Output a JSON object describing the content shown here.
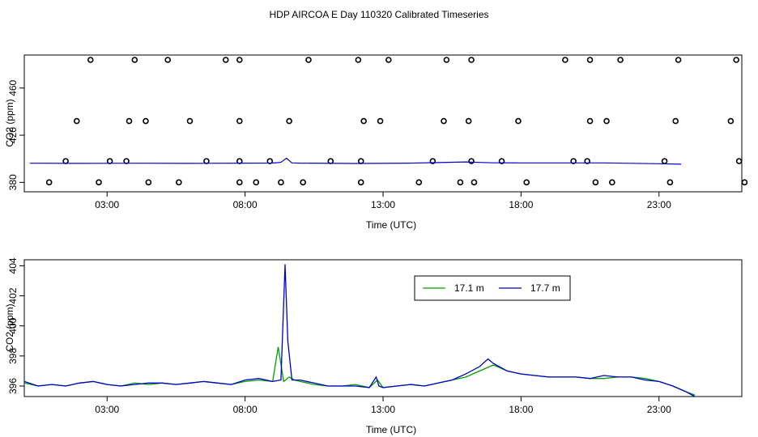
{
  "title": "HDP AIRCOA E  Day 110320  Calibrated Timeseries",
  "colors": {
    "series_17_1": "#00a000",
    "series_17_7": "#0000cc",
    "axes": "#000000",
    "markers": "#000000"
  },
  "chart_data": [
    {
      "type": "line",
      "panel": "top",
      "title": "",
      "xlabel": "Time (UTC)",
      "ylabel": "CO2 (ppm)",
      "xlim": [
        "00:00",
        "26:00"
      ],
      "ylim": [
        372,
        488
      ],
      "x_ticks": [
        "03:00",
        "08:00",
        "13:00",
        "18:00",
        "23:00"
      ],
      "y_ticks": [
        380,
        420,
        460
      ],
      "grid": false,
      "legend": "none",
      "series": [
        {
          "values_hours": [
            0.2,
            2.0,
            4.0,
            6.0,
            8.0,
            9.0,
            9.3,
            9.5,
            9.7,
            10.0,
            12.0,
            14.0,
            15.0,
            16.0,
            16.5,
            17.0,
            18.0,
            20.0,
            21.0,
            23.0,
            23.8
          ],
          "values_ppm": [
            396.2,
            396.1,
            396.2,
            396.1,
            396.3,
            396.4,
            397.0,
            400.5,
            396.5,
            396.3,
            396.0,
            396.3,
            396.8,
            397.3,
            396.9,
            396.6,
            396.5,
            396.5,
            396.5,
            395.8,
            395.4
          ]
        }
      ],
      "calibration_points": {
        "hours": [
          0.9,
          2.7,
          4.5,
          5.6,
          7.8,
          8.4,
          9.3,
          10.1,
          12.2,
          14.3,
          15.8,
          16.3,
          18.2,
          20.7,
          21.3,
          23.4,
          26.1,
          1.5,
          3.1,
          3.7,
          6.6,
          7.8,
          8.9,
          11.1,
          12.2,
          14.8,
          16.2,
          17.3,
          19.9,
          20.4,
          23.2,
          25.9,
          1.9,
          3.8,
          4.4,
          6.0,
          7.8,
          9.6,
          12.3,
          12.9,
          15.2,
          16.1,
          17.9,
          20.5,
          21.1,
          23.6,
          25.6,
          2.4,
          4.0,
          5.2,
          7.3,
          7.8,
          10.3,
          12.1,
          13.2,
          15.3,
          16.2,
          19.6,
          20.5,
          21.6,
          23.7,
          25.8
        ],
        "ppm": [
          380,
          380,
          380,
          380,
          380,
          380,
          380,
          380,
          380,
          380,
          380,
          380,
          380,
          380,
          380,
          380,
          380,
          398,
          398,
          398,
          398,
          398,
          398,
          398,
          398,
          398,
          398,
          398,
          398,
          398,
          398,
          398,
          432,
          432,
          432,
          432,
          432,
          432,
          432,
          432,
          432,
          432,
          432,
          432,
          432,
          432,
          432,
          490,
          490,
          490,
          490,
          490,
          490,
          490,
          490,
          490,
          490,
          490,
          490,
          490,
          490,
          490
        ]
      }
    },
    {
      "type": "line",
      "panel": "bottom",
      "title": "",
      "xlabel": "Time (UTC)",
      "ylabel": "CO2 (ppm)",
      "xlim": [
        "00:00",
        "26:00"
      ],
      "ylim": [
        395.3,
        404.4
      ],
      "x_ticks": [
        "03:00",
        "08:00",
        "13:00",
        "18:00",
        "23:00"
      ],
      "y_ticks": [
        396,
        398,
        400,
        402,
        404
      ],
      "grid": false,
      "legend": "top-center",
      "series": [
        {
          "name": "17.1 m",
          "hours": [
            0.0,
            0.5,
            1.0,
            1.5,
            2.0,
            2.5,
            3.0,
            3.5,
            4.0,
            4.5,
            5.0,
            5.5,
            6.0,
            6.5,
            7.0,
            7.5,
            8.0,
            8.5,
            9.0,
            9.2,
            9.4,
            9.6,
            9.8,
            10.0,
            10.5,
            11.0,
            11.5,
            12.0,
            12.5,
            12.8,
            13.0,
            13.5,
            14.0,
            14.5,
            15.0,
            15.5,
            16.0,
            16.5,
            17.0,
            17.5,
            18.0,
            18.5,
            19.0,
            19.5,
            20.0,
            20.5,
            21.0,
            21.5,
            22.0,
            22.5,
            23.0,
            23.5,
            24.0,
            24.3
          ],
          "values": [
            396.2,
            396.0,
            396.1,
            396.0,
            396.2,
            396.3,
            396.1,
            396.0,
            396.2,
            396.1,
            396.2,
            396.1,
            396.2,
            396.3,
            396.2,
            396.1,
            396.3,
            396.4,
            396.3,
            398.6,
            396.3,
            396.6,
            396.4,
            396.3,
            396.1,
            396.0,
            396.0,
            396.1,
            395.9,
            396.4,
            395.9,
            396.0,
            396.1,
            396.0,
            396.2,
            396.4,
            396.6,
            397.0,
            397.4,
            397.0,
            396.8,
            396.7,
            396.6,
            396.6,
            396.6,
            396.5,
            396.5,
            396.6,
            396.6,
            396.5,
            396.3,
            396.0,
            395.6,
            395.4
          ]
        },
        {
          "name": "17.7 m",
          "hours": [
            0.0,
            0.5,
            1.0,
            1.5,
            2.0,
            2.5,
            3.0,
            3.5,
            4.0,
            4.5,
            5.0,
            5.5,
            6.0,
            6.5,
            7.0,
            7.5,
            8.0,
            8.5,
            9.0,
            9.3,
            9.45,
            9.55,
            9.7,
            10.0,
            10.5,
            11.0,
            11.5,
            12.0,
            12.5,
            12.75,
            12.85,
            13.0,
            13.5,
            14.0,
            14.5,
            15.0,
            15.5,
            16.0,
            16.5,
            16.8,
            17.0,
            17.5,
            18.0,
            18.5,
            19.0,
            19.5,
            20.0,
            20.5,
            21.0,
            21.5,
            22.0,
            22.5,
            23.0,
            23.5,
            24.0,
            24.3
          ],
          "values": [
            396.3,
            396.0,
            396.1,
            396.0,
            396.2,
            396.3,
            396.1,
            396.0,
            396.1,
            396.2,
            396.2,
            396.1,
            396.2,
            396.3,
            396.2,
            396.1,
            396.4,
            396.5,
            396.3,
            396.4,
            404.1,
            399.0,
            396.4,
            396.4,
            396.2,
            396.0,
            396.0,
            396.0,
            395.9,
            396.6,
            396.0,
            395.9,
            396.0,
            396.1,
            396.0,
            396.2,
            396.4,
            396.8,
            397.3,
            397.8,
            397.5,
            397.0,
            396.8,
            396.7,
            396.6,
            396.6,
            396.6,
            396.5,
            396.7,
            396.6,
            396.6,
            396.4,
            396.3,
            396.0,
            395.6,
            395.3
          ]
        }
      ]
    }
  ]
}
